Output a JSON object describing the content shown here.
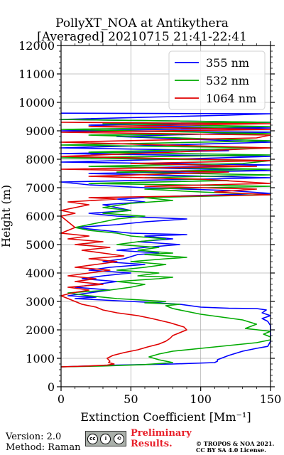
{
  "title_line1": "PollyXT_NOA at Antikythera",
  "title_line2": "[Averaged] 20210715 21:41-22:41",
  "footer": {
    "version": "Version: 2.0",
    "method": "Method: Raman",
    "preliminary": "Preliminary",
    "results": "Results.",
    "copyright1": "© TROPOS & NOA 2021.",
    "copyright2": "CC BY SA 4.0 License."
  },
  "cc_badge": {
    "icons": [
      "cc-icon",
      "by-icon",
      "sa-icon"
    ],
    "labels": [
      "cc",
      "i",
      "⟲"
    ]
  },
  "chart_data": {
    "type": "line",
    "title": "PollyXT_NOA at Antikythera [Averaged] 20210715 21:41-22:41",
    "xlabel": "Extinction Coefficient [Mm⁻¹]",
    "ylabel": "Height (m)",
    "xlim": [
      0,
      150
    ],
    "ylim": [
      0,
      12000
    ],
    "xticks": [
      "0",
      "50",
      "100",
      "150"
    ],
    "yticks": [
      "0",
      "1000",
      "2000",
      "3000",
      "4000",
      "5000",
      "6000",
      "7000",
      "8000",
      "9000",
      "10000",
      "11000",
      "12000"
    ],
    "grid": true,
    "legend_position": "top-right",
    "series": [
      {
        "name": "355 nm",
        "color": "#0000ff",
        "points": [
          [
            0,
            700
          ],
          [
            40,
            760
          ],
          [
            80,
            800
          ],
          [
            110,
            850
          ],
          [
            112,
            900
          ],
          [
            112,
            950
          ],
          [
            120,
            1100
          ],
          [
            130,
            1250
          ],
          [
            140,
            1350
          ],
          [
            148,
            1420
          ],
          [
            150,
            1600
          ],
          [
            150,
            1900
          ],
          [
            150,
            2150
          ],
          [
            148,
            2300
          ],
          [
            144,
            2400
          ],
          [
            150,
            2500
          ],
          [
            144,
            2600
          ],
          [
            147,
            2700
          ],
          [
            140,
            2750
          ],
          [
            120,
            2760
          ],
          [
            100,
            2800
          ],
          [
            85,
            2900
          ],
          [
            70,
            2950
          ],
          [
            50,
            3000
          ],
          [
            30,
            3050
          ],
          [
            10,
            3100
          ],
          [
            25,
            3150
          ],
          [
            5,
            3200
          ],
          [
            20,
            3300
          ],
          [
            35,
            3400
          ],
          [
            10,
            3500
          ],
          [
            25,
            3600
          ],
          [
            40,
            3700
          ],
          [
            15,
            3800
          ],
          [
            30,
            3900
          ],
          [
            50,
            4000
          ],
          [
            20,
            4100
          ],
          [
            35,
            4200
          ],
          [
            60,
            4300
          ],
          [
            30,
            4400
          ],
          [
            45,
            4500
          ],
          [
            55,
            4650
          ],
          [
            70,
            4700
          ],
          [
            40,
            4800
          ],
          [
            60,
            4900
          ],
          [
            85,
            5000
          ],
          [
            55,
            5100
          ],
          [
            80,
            5200
          ],
          [
            60,
            5300
          ],
          [
            90,
            5350
          ],
          [
            50,
            5400
          ],
          [
            30,
            5500
          ],
          [
            10,
            5600
          ],
          [
            40,
            5700
          ],
          [
            60,
            5800
          ],
          [
            90,
            5900
          ],
          [
            40,
            6000
          ],
          [
            20,
            6100
          ],
          [
            50,
            6200
          ],
          [
            30,
            6400
          ],
          [
            60,
            6500
          ],
          [
            40,
            6600
          ],
          [
            80,
            6700
          ],
          [
            150,
            6800
          ],
          [
            120,
            6900
          ],
          [
            60,
            7000
          ],
          [
            20,
            7100
          ],
          [
            0,
            7200
          ],
          [
            150,
            7350
          ],
          [
            20,
            7500
          ],
          [
            150,
            7600
          ],
          [
            60,
            7700
          ],
          [
            150,
            7800
          ],
          [
            0,
            7900
          ],
          [
            80,
            8000
          ],
          [
            150,
            8100
          ],
          [
            0,
            8200
          ],
          [
            120,
            8300
          ],
          [
            0,
            8400
          ],
          [
            150,
            8600
          ],
          [
            40,
            8800
          ],
          [
            150,
            8950
          ],
          [
            0,
            9000
          ],
          [
            150,
            9100
          ],
          [
            20,
            9200
          ],
          [
            150,
            9300
          ],
          [
            0,
            9400
          ],
          [
            120,
            9550
          ],
          [
            150,
            9600
          ],
          [
            0,
            9620
          ]
        ]
      },
      {
        "name": "532 nm",
        "color": "#00aa00",
        "points": [
          [
            0,
            700
          ],
          [
            30,
            730
          ],
          [
            60,
            780
          ],
          [
            80,
            850
          ],
          [
            70,
            950
          ],
          [
            63,
            1050
          ],
          [
            70,
            1150
          ],
          [
            80,
            1250
          ],
          [
            100,
            1350
          ],
          [
            120,
            1450
          ],
          [
            140,
            1550
          ],
          [
            150,
            1650
          ],
          [
            150,
            1750
          ],
          [
            145,
            1850
          ],
          [
            150,
            1950
          ],
          [
            132,
            2050
          ],
          [
            140,
            2200
          ],
          [
            130,
            2350
          ],
          [
            115,
            2450
          ],
          [
            100,
            2550
          ],
          [
            90,
            2650
          ],
          [
            80,
            2750
          ],
          [
            75,
            2850
          ],
          [
            85,
            2900
          ],
          [
            60,
            2950
          ],
          [
            75,
            3000
          ],
          [
            40,
            3100
          ],
          [
            20,
            3200
          ],
          [
            5,
            3300
          ],
          [
            35,
            3400
          ],
          [
            50,
            3500
          ],
          [
            60,
            3600
          ],
          [
            40,
            3700
          ],
          [
            70,
            3800
          ],
          [
            80,
            3850
          ],
          [
            55,
            3900
          ],
          [
            70,
            4000
          ],
          [
            40,
            4100
          ],
          [
            60,
            4200
          ],
          [
            75,
            4300
          ],
          [
            50,
            4400
          ],
          [
            75,
            4500
          ],
          [
            90,
            4550
          ],
          [
            60,
            4650
          ],
          [
            80,
            4700
          ],
          [
            55,
            4800
          ],
          [
            70,
            4900
          ],
          [
            40,
            5000
          ],
          [
            55,
            5100
          ],
          [
            75,
            5200
          ],
          [
            50,
            5300
          ],
          [
            40,
            5400
          ],
          [
            20,
            5500
          ],
          [
            10,
            5600
          ],
          [
            30,
            5800
          ],
          [
            40,
            5900
          ],
          [
            60,
            6000
          ],
          [
            30,
            6100
          ],
          [
            50,
            6200
          ],
          [
            30,
            6300
          ],
          [
            50,
            6450
          ],
          [
            80,
            6550
          ],
          [
            60,
            6650
          ],
          [
            150,
            6750
          ],
          [
            100,
            6850
          ],
          [
            60,
            6950
          ],
          [
            150,
            7050
          ],
          [
            20,
            7150
          ],
          [
            120,
            7250
          ],
          [
            60,
            7350
          ],
          [
            150,
            7450
          ],
          [
            40,
            7550
          ],
          [
            150,
            7650
          ],
          [
            20,
            7750
          ],
          [
            130,
            7850
          ],
          [
            150,
            7950
          ],
          [
            0,
            8050
          ],
          [
            150,
            8150
          ],
          [
            20,
            8250
          ],
          [
            150,
            8400
          ],
          [
            0,
            8500
          ],
          [
            150,
            8650
          ],
          [
            20,
            8850
          ],
          [
            150,
            8900
          ],
          [
            0,
            9050
          ],
          [
            150,
            9150
          ],
          [
            30,
            9250
          ],
          [
            150,
            9300
          ],
          [
            0,
            9400
          ]
        ]
      },
      {
        "name": "1064 nm",
        "color": "#e00000",
        "points": [
          [
            0,
            700
          ],
          [
            20,
            730
          ],
          [
            33,
            760
          ],
          [
            38,
            800
          ],
          [
            34,
            850
          ],
          [
            35,
            900
          ],
          [
            33,
            1000
          ],
          [
            37,
            1100
          ],
          [
            45,
            1200
          ],
          [
            55,
            1300
          ],
          [
            62,
            1400
          ],
          [
            70,
            1500
          ],
          [
            75,
            1600
          ],
          [
            78,
            1700
          ],
          [
            80,
            1800
          ],
          [
            85,
            1900
          ],
          [
            90,
            2000
          ],
          [
            88,
            2100
          ],
          [
            78,
            2250
          ],
          [
            65,
            2400
          ],
          [
            55,
            2500
          ],
          [
            40,
            2600
          ],
          [
            30,
            2700
          ],
          [
            25,
            2800
          ],
          [
            15,
            2900
          ],
          [
            10,
            3000
          ],
          [
            5,
            3100
          ],
          [
            0,
            3200
          ],
          [
            8,
            3300
          ],
          [
            20,
            3400
          ],
          [
            5,
            3500
          ],
          [
            30,
            3600
          ],
          [
            10,
            3700
          ],
          [
            25,
            3800
          ],
          [
            5,
            3900
          ],
          [
            20,
            4000
          ],
          [
            35,
            4100
          ],
          [
            10,
            4200
          ],
          [
            25,
            4300
          ],
          [
            40,
            4400
          ],
          [
            20,
            4500
          ],
          [
            45,
            4600
          ],
          [
            30,
            4700
          ],
          [
            15,
            4800
          ],
          [
            35,
            4900
          ],
          [
            10,
            5000
          ],
          [
            30,
            5100
          ],
          [
            5,
            5200
          ],
          [
            20,
            5300
          ],
          [
            0,
            5400
          ],
          [
            10,
            5600
          ],
          [
            5,
            5800
          ],
          [
            0,
            6000
          ],
          [
            10,
            6100
          ],
          [
            0,
            6200
          ],
          [
            20,
            6400
          ],
          [
            5,
            6500
          ],
          [
            40,
            6600
          ],
          [
            20,
            6650
          ],
          [
            150,
            6750
          ],
          [
            110,
            6850
          ],
          [
            140,
            6950
          ],
          [
            60,
            7050
          ],
          [
            150,
            7150
          ],
          [
            100,
            7300
          ],
          [
            20,
            7400
          ],
          [
            120,
            7550
          ],
          [
            0,
            7650
          ],
          [
            140,
            7750
          ],
          [
            50,
            7850
          ],
          [
            150,
            7950
          ],
          [
            0,
            8100
          ],
          [
            80,
            8250
          ],
          [
            150,
            8400
          ],
          [
            0,
            8600
          ],
          [
            140,
            8750
          ],
          [
            150,
            8850
          ],
          [
            0,
            8950
          ],
          [
            150,
            9050
          ],
          [
            20,
            9150
          ],
          [
            150,
            9250
          ],
          [
            0,
            9300
          ]
        ]
      }
    ]
  }
}
